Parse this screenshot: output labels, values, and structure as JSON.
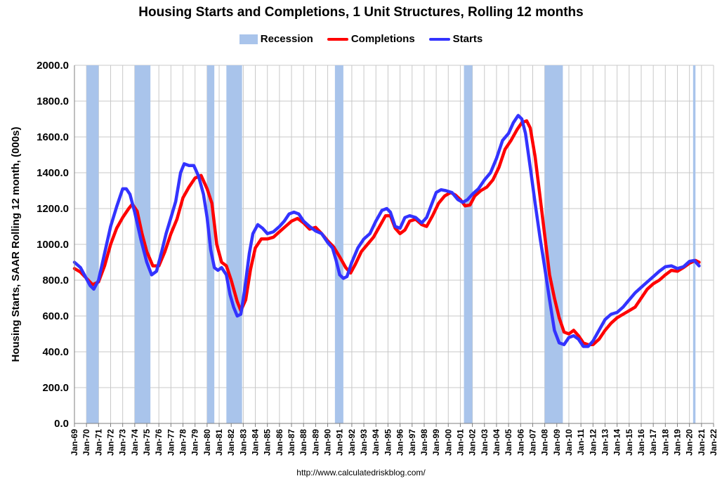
{
  "chart_data": {
    "type": "line",
    "title": "Housing Starts and Completions, 1 Unit Structures, Rolling 12 months",
    "ylabel": "Housing Starts, SAAR Rolling 12 month, (000s)",
    "xlabel": "",
    "ylim": [
      0,
      2000
    ],
    "xlim": [
      1969.0,
      2022.0
    ],
    "yticks": [
      "0.0",
      "200.0",
      "400.0",
      "600.0",
      "800.0",
      "1000.0",
      "1200.0",
      "1400.0",
      "1600.0",
      "1800.0",
      "2000.0"
    ],
    "xticks": [
      "Jan-69",
      "Jan-70",
      "Jan-71",
      "Jan-72",
      "Jan-73",
      "Jan-74",
      "Jan-75",
      "Jan-76",
      "Jan-77",
      "Jan-78",
      "Jan-79",
      "Jan-80",
      "Jan-81",
      "Jan-82",
      "Jan-83",
      "Jan-84",
      "Jan-85",
      "Jan-86",
      "Jan-87",
      "Jan-88",
      "Jan-89",
      "Jan-90",
      "Jan-91",
      "Jan-92",
      "Jan-93",
      "Jan-94",
      "Jan-95",
      "Jan-96",
      "Jan-97",
      "Jan-98",
      "Jan-99",
      "Jan-00",
      "Jan-01",
      "Jan-02",
      "Jan-03",
      "Jan-04",
      "Jan-05",
      "Jan-06",
      "Jan-07",
      "Jan-08",
      "Jan-09",
      "Jan-10",
      "Jan-11",
      "Jan-12",
      "Jan-13",
      "Jan-14",
      "Jan-15",
      "Jan-16",
      "Jan-17",
      "Jan-18",
      "Jan-19",
      "Jan-20",
      "Jan-21",
      "Jan-22"
    ],
    "grid": true,
    "legend_position": "top-center",
    "legend": [
      "Recession",
      "Completions",
      "Starts"
    ],
    "recessions": [
      [
        1970.0,
        1971.0
      ],
      [
        1974.0,
        1975.3
      ],
      [
        1980.0,
        1980.6
      ],
      [
        1981.6,
        1982.9
      ],
      [
        1990.6,
        1991.3
      ],
      [
        2001.3,
        2002.0
      ],
      [
        2008.0,
        2009.5
      ],
      [
        2020.3,
        2020.5
      ]
    ],
    "series": [
      {
        "name": "Completions",
        "color": "#ff0000",
        "points": [
          [
            1969.0,
            865
          ],
          [
            1969.5,
            845
          ],
          [
            1970.0,
            810
          ],
          [
            1970.5,
            775
          ],
          [
            1971.0,
            790
          ],
          [
            1971.5,
            880
          ],
          [
            1972.0,
            1000
          ],
          [
            1972.5,
            1090
          ],
          [
            1973.0,
            1150
          ],
          [
            1973.5,
            1200
          ],
          [
            1973.8,
            1225
          ],
          [
            1974.2,
            1185
          ],
          [
            1974.6,
            1060
          ],
          [
            1975.0,
            960
          ],
          [
            1975.5,
            880
          ],
          [
            1976.0,
            880
          ],
          [
            1976.5,
            960
          ],
          [
            1977.0,
            1060
          ],
          [
            1977.5,
            1140
          ],
          [
            1978.0,
            1260
          ],
          [
            1978.5,
            1320
          ],
          [
            1979.0,
            1370
          ],
          [
            1979.5,
            1385
          ],
          [
            1980.0,
            1310
          ],
          [
            1980.4,
            1230
          ],
          [
            1980.8,
            1000
          ],
          [
            1981.2,
            900
          ],
          [
            1981.6,
            880
          ],
          [
            1982.0,
            800
          ],
          [
            1982.5,
            680
          ],
          [
            1982.8,
            630
          ],
          [
            1983.2,
            690
          ],
          [
            1983.6,
            860
          ],
          [
            1984.0,
            980
          ],
          [
            1984.5,
            1030
          ],
          [
            1985.0,
            1030
          ],
          [
            1985.5,
            1040
          ],
          [
            1986.0,
            1070
          ],
          [
            1986.5,
            1100
          ],
          [
            1987.0,
            1130
          ],
          [
            1987.5,
            1145
          ],
          [
            1988.0,
            1120
          ],
          [
            1988.5,
            1085
          ],
          [
            1989.0,
            1095
          ],
          [
            1989.5,
            1060
          ],
          [
            1990.0,
            1020
          ],
          [
            1990.5,
            985
          ],
          [
            1991.0,
            930
          ],
          [
            1991.5,
            870
          ],
          [
            1991.9,
            840
          ],
          [
            1992.3,
            890
          ],
          [
            1992.8,
            960
          ],
          [
            1993.3,
            1000
          ],
          [
            1993.8,
            1040
          ],
          [
            1994.3,
            1100
          ],
          [
            1994.8,
            1160
          ],
          [
            1995.2,
            1160
          ],
          [
            1995.6,
            1090
          ],
          [
            1996.0,
            1060
          ],
          [
            1996.4,
            1080
          ],
          [
            1996.8,
            1130
          ],
          [
            1997.3,
            1140
          ],
          [
            1997.8,
            1110
          ],
          [
            1998.2,
            1100
          ],
          [
            1998.7,
            1160
          ],
          [
            1999.2,
            1230
          ],
          [
            1999.7,
            1270
          ],
          [
            2000.2,
            1290
          ],
          [
            2000.6,
            1275
          ],
          [
            2001.0,
            1250
          ],
          [
            2001.4,
            1215
          ],
          [
            2001.8,
            1220
          ],
          [
            2002.2,
            1270
          ],
          [
            2002.7,
            1300
          ],
          [
            2003.2,
            1320
          ],
          [
            2003.7,
            1360
          ],
          [
            2004.2,
            1430
          ],
          [
            2004.7,
            1530
          ],
          [
            2005.2,
            1580
          ],
          [
            2005.7,
            1640
          ],
          [
            2006.1,
            1680
          ],
          [
            2006.5,
            1690
          ],
          [
            2006.8,
            1650
          ],
          [
            2007.2,
            1490
          ],
          [
            2007.6,
            1270
          ],
          [
            2008.0,
            1050
          ],
          [
            2008.4,
            830
          ],
          [
            2008.8,
            700
          ],
          [
            2009.2,
            590
          ],
          [
            2009.6,
            510
          ],
          [
            2010.0,
            500
          ],
          [
            2010.4,
            520
          ],
          [
            2010.8,
            490
          ],
          [
            2011.2,
            450
          ],
          [
            2011.6,
            440
          ],
          [
            2012.0,
            440
          ],
          [
            2012.5,
            470
          ],
          [
            2013.0,
            520
          ],
          [
            2013.5,
            560
          ],
          [
            2014.0,
            590
          ],
          [
            2014.5,
            610
          ],
          [
            2015.0,
            630
          ],
          [
            2015.5,
            650
          ],
          [
            2016.0,
            700
          ],
          [
            2016.5,
            750
          ],
          [
            2017.0,
            780
          ],
          [
            2017.5,
            800
          ],
          [
            2018.0,
            830
          ],
          [
            2018.5,
            855
          ],
          [
            2019.0,
            850
          ],
          [
            2019.5,
            870
          ],
          [
            2020.0,
            895
          ],
          [
            2020.5,
            910
          ],
          [
            2020.8,
            900
          ]
        ]
      },
      {
        "name": "Starts",
        "color": "#3333ff",
        "points": [
          [
            1969.0,
            900
          ],
          [
            1969.5,
            870
          ],
          [
            1969.9,
            820
          ],
          [
            1970.3,
            770
          ],
          [
            1970.6,
            750
          ],
          [
            1971.0,
            800
          ],
          [
            1971.5,
            950
          ],
          [
            1972.0,
            1100
          ],
          [
            1972.5,
            1210
          ],
          [
            1973.0,
            1310
          ],
          [
            1973.3,
            1310
          ],
          [
            1973.6,
            1280
          ],
          [
            1974.0,
            1180
          ],
          [
            1974.5,
            1030
          ],
          [
            1975.0,
            900
          ],
          [
            1975.4,
            830
          ],
          [
            1975.8,
            850
          ],
          [
            1976.2,
            950
          ],
          [
            1976.6,
            1060
          ],
          [
            1977.0,
            1150
          ],
          [
            1977.4,
            1240
          ],
          [
            1977.8,
            1400
          ],
          [
            1978.1,
            1450
          ],
          [
            1978.5,
            1440
          ],
          [
            1978.9,
            1440
          ],
          [
            1979.3,
            1380
          ],
          [
            1979.7,
            1280
          ],
          [
            1980.0,
            1150
          ],
          [
            1980.3,
            970
          ],
          [
            1980.6,
            870
          ],
          [
            1980.9,
            855
          ],
          [
            1981.2,
            870
          ],
          [
            1981.6,
            830
          ],
          [
            1981.9,
            720
          ],
          [
            1982.2,
            650
          ],
          [
            1982.5,
            600
          ],
          [
            1982.8,
            610
          ],
          [
            1983.1,
            740
          ],
          [
            1983.5,
            950
          ],
          [
            1983.8,
            1060
          ],
          [
            1984.2,
            1110
          ],
          [
            1984.6,
            1090
          ],
          [
            1985.0,
            1060
          ],
          [
            1985.5,
            1070
          ],
          [
            1986.0,
            1100
          ],
          [
            1986.4,
            1130
          ],
          [
            1986.8,
            1170
          ],
          [
            1987.2,
            1180
          ],
          [
            1987.6,
            1170
          ],
          [
            1988.0,
            1130
          ],
          [
            1988.5,
            1100
          ],
          [
            1989.0,
            1075
          ],
          [
            1989.5,
            1060
          ],
          [
            1990.0,
            1010
          ],
          [
            1990.4,
            980
          ],
          [
            1990.7,
            910
          ],
          [
            1991.0,
            830
          ],
          [
            1991.3,
            810
          ],
          [
            1991.6,
            820
          ],
          [
            1992.0,
            900
          ],
          [
            1992.5,
            980
          ],
          [
            1993.0,
            1030
          ],
          [
            1993.5,
            1060
          ],
          [
            1994.0,
            1130
          ],
          [
            1994.5,
            1190
          ],
          [
            1994.9,
            1200
          ],
          [
            1995.2,
            1180
          ],
          [
            1995.6,
            1100
          ],
          [
            1996.0,
            1090
          ],
          [
            1996.4,
            1150
          ],
          [
            1996.8,
            1160
          ],
          [
            1997.3,
            1150
          ],
          [
            1997.8,
            1120
          ],
          [
            1998.2,
            1150
          ],
          [
            1998.6,
            1220
          ],
          [
            1999.0,
            1290
          ],
          [
            1999.4,
            1305
          ],
          [
            1999.8,
            1300
          ],
          [
            2000.3,
            1290
          ],
          [
            2000.8,
            1250
          ],
          [
            2001.2,
            1235
          ],
          [
            2001.6,
            1250
          ],
          [
            2002.0,
            1280
          ],
          [
            2002.5,
            1310
          ],
          [
            2003.0,
            1360
          ],
          [
            2003.5,
            1400
          ],
          [
            2004.0,
            1480
          ],
          [
            2004.5,
            1580
          ],
          [
            2005.0,
            1620
          ],
          [
            2005.4,
            1680
          ],
          [
            2005.8,
            1720
          ],
          [
            2006.1,
            1700
          ],
          [
            2006.4,
            1620
          ],
          [
            2006.8,
            1430
          ],
          [
            2007.2,
            1230
          ],
          [
            2007.6,
            1040
          ],
          [
            2008.0,
            870
          ],
          [
            2008.4,
            690
          ],
          [
            2008.8,
            520
          ],
          [
            2009.2,
            450
          ],
          [
            2009.6,
            440
          ],
          [
            2010.0,
            480
          ],
          [
            2010.4,
            490
          ],
          [
            2010.8,
            470
          ],
          [
            2011.2,
            430
          ],
          [
            2011.6,
            430
          ],
          [
            2012.0,
            460
          ],
          [
            2012.5,
            520
          ],
          [
            2013.0,
            580
          ],
          [
            2013.5,
            610
          ],
          [
            2014.0,
            620
          ],
          [
            2014.5,
            650
          ],
          [
            2015.0,
            690
          ],
          [
            2015.5,
            730
          ],
          [
            2016.0,
            760
          ],
          [
            2016.5,
            790
          ],
          [
            2017.0,
            820
          ],
          [
            2017.5,
            850
          ],
          [
            2018.0,
            875
          ],
          [
            2018.5,
            880
          ],
          [
            2019.0,
            865
          ],
          [
            2019.5,
            875
          ],
          [
            2020.0,
            905
          ],
          [
            2020.4,
            910
          ],
          [
            2020.8,
            880
          ]
        ]
      }
    ]
  },
  "footer": {
    "url": "http://www.calculatedriskblog.com/"
  },
  "colors": {
    "recession": "#a9c4eb",
    "grid": "#c8c8c8",
    "axis": "#7f7f7f"
  }
}
